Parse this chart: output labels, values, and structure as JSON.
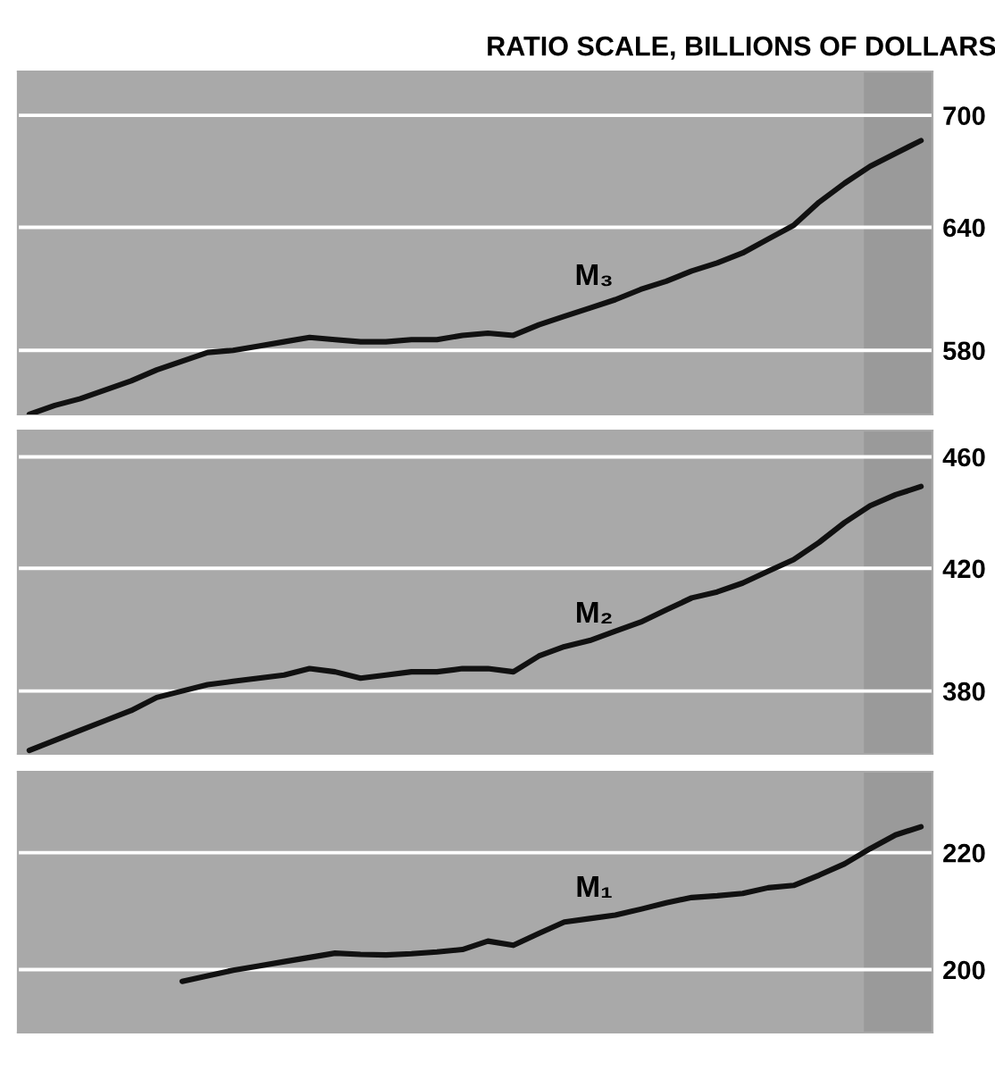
{
  "chart_data": [
    {
      "type": "line",
      "title": "RATIO SCALE, BILLIONS OF DOLLARS",
      "log": true,
      "grid": "y",
      "categories": [
        null,
        null,
        null,
        null,
        null,
        null,
        null,
        null,
        null,
        null,
        null,
        null,
        null,
        null,
        null,
        null,
        null,
        null,
        null,
        null,
        null,
        null,
        null,
        null,
        null,
        null,
        null,
        null,
        null,
        null,
        null,
        null,
        null,
        null,
        null,
        null
      ],
      "ylim": [
        551,
        725
      ],
      "yticks": [
        580,
        640,
        700
      ],
      "annotations": [
        "M₃"
      ],
      "series": [
        {
          "color": "#111111",
          "values": [
            551,
            555,
            558,
            562,
            566,
            571,
            575,
            579,
            580,
            582,
            584,
            586,
            585,
            584,
            584,
            585,
            585,
            587,
            588,
            587,
            592,
            596,
            600,
            604,
            609,
            613,
            618,
            622,
            627,
            634,
            641,
            653,
            663,
            672,
            679,
            686
          ]
        }
      ]
    },
    {
      "type": "line",
      "log": true,
      "grid": "y",
      "categories": [
        null,
        null,
        null,
        null,
        null,
        null,
        null,
        null,
        null,
        null,
        null,
        null,
        null,
        null,
        null,
        null,
        null,
        null,
        null,
        null,
        null,
        null,
        null,
        null,
        null,
        null,
        null,
        null,
        null,
        null,
        null,
        null,
        null,
        null,
        null,
        null
      ],
      "ylim": [
        361,
        470
      ],
      "yticks": [
        380,
        420,
        460
      ],
      "annotations": [
        "M₂"
      ],
      "series": [
        {
          "color": "#111111",
          "values": [
            362,
            365,
            368,
            371,
            374,
            378,
            380,
            382,
            383,
            384,
            385,
            387,
            386,
            384,
            385,
            386,
            386,
            387,
            387,
            386,
            391,
            394,
            396,
            399,
            402,
            406,
            410,
            412,
            415,
            419,
            423,
            429,
            436,
            442,
            446,
            449
          ]
        }
      ]
    },
    {
      "type": "line",
      "log": true,
      "grid": "y",
      "categories": [
        null,
        null,
        null,
        null,
        null,
        null,
        null,
        null,
        null,
        null,
        null,
        null,
        null,
        null,
        null,
        null,
        null,
        null,
        null,
        null,
        null,
        null,
        null,
        null,
        null,
        null,
        null,
        null,
        null,
        null,
        null,
        null,
        null,
        null,
        null,
        null
      ],
      "ylim": [
        190,
        235
      ],
      "yticks": [
        200,
        220
      ],
      "annotations": [
        "M₁"
      ],
      "series": [
        {
          "color": "#111111",
          "values": [
            null,
            null,
            null,
            null,
            null,
            null,
            198.1,
            199.0,
            199.9,
            200.6,
            201.3,
            202.0,
            202.7,
            202.5,
            202.4,
            202.6,
            202.9,
            203.3,
            204.7,
            204.0,
            206.0,
            207.9,
            208.5,
            209.1,
            210.1,
            211.2,
            212.1,
            212.4,
            212.8,
            213.8,
            214.2,
            216.0,
            218.0,
            220.7,
            223.2,
            224.7
          ]
        }
      ]
    }
  ]
}
